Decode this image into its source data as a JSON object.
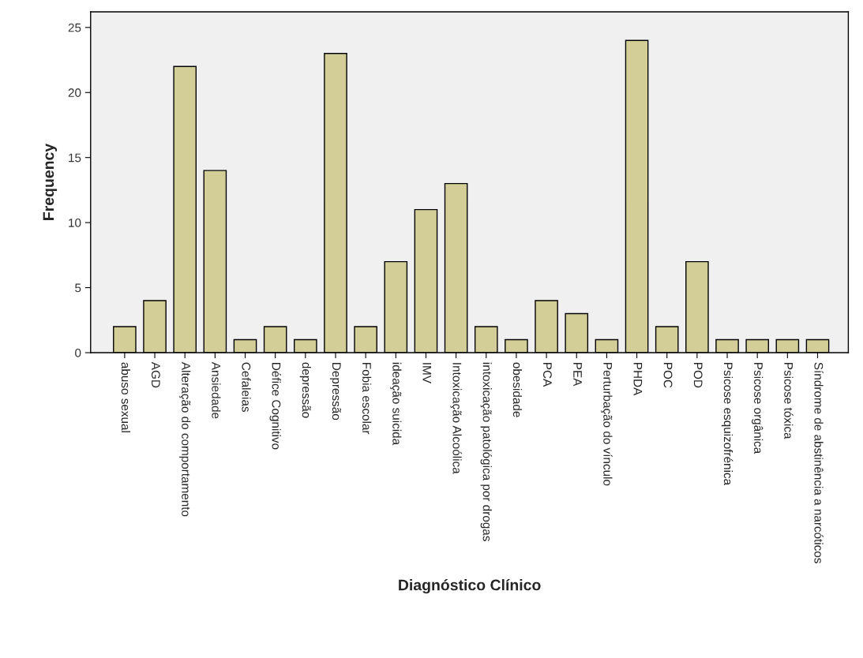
{
  "chart_data": {
    "type": "bar",
    "xlabel": "Diagnóstico Clínico",
    "ylabel": "Frequency",
    "categories": [
      "abuso sexual",
      "AGD",
      "Alteração do comportamento",
      "Ansiedade",
      "Cefaleias",
      "Défice Cognitivo",
      "depressão",
      "Depressão",
      "Fobia escolar",
      "ideação suicida",
      "IMV",
      "Intoxicação Alcoólica",
      "intoxicação patológica por drogas",
      "obesidade",
      "PCA",
      "PEA",
      "Perturbação do vínculo",
      "PHDA",
      "POC",
      "POD",
      "Psicose esquizofrénica",
      "Psicose orgânica",
      "Psicose tóxica",
      "Síndrome de abstinência a narcóticos"
    ],
    "values": [
      2,
      4,
      22,
      14,
      1,
      2,
      1,
      23,
      2,
      7,
      11,
      13,
      2,
      1,
      4,
      3,
      1,
      24,
      2,
      7,
      1,
      1,
      1,
      1
    ],
    "color": "#d3ce97",
    "ylim": [
      0,
      26.2
    ],
    "yticks": [
      0,
      5,
      10,
      15,
      20,
      25
    ],
    "grid": false,
    "legend": false
  }
}
